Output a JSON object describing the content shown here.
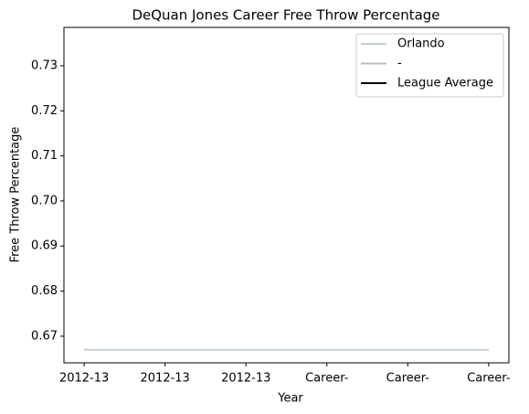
{
  "chart_data": {
    "type": "line",
    "title": "DeQuan Jones Career Free Throw Percentage",
    "xlabel": "Year",
    "ylabel": "Free Throw Percentage",
    "categories": [
      "2012-13",
      "2012-13",
      "2012-13",
      "Career-",
      "Career-",
      "Career-"
    ],
    "series": [
      {
        "name": "Orlando",
        "color": "#c4ced4",
        "values": [
          0.667,
          0.667,
          0.667,
          0.667,
          0.667,
          0.667
        ]
      },
      {
        "name": "-",
        "color": "#bbbbbb",
        "values": [
          null,
          null,
          null,
          null,
          null,
          null
        ]
      },
      {
        "name": "League Average",
        "color": "#000000",
        "values": [
          null,
          null,
          null,
          null,
          null,
          null
        ]
      }
    ],
    "ylim": [
      0.6641,
      0.7385
    ],
    "yticks": [
      {
        "value": 0.67,
        "label": "0.67"
      },
      {
        "value": 0.68,
        "label": "0.68"
      },
      {
        "value": 0.69,
        "label": "0.69"
      },
      {
        "value": 0.7,
        "label": "0.70"
      },
      {
        "value": 0.71,
        "label": "0.71"
      },
      {
        "value": 0.72,
        "label": "0.72"
      },
      {
        "value": 0.73,
        "label": "0.73"
      }
    ],
    "legend": "upper right",
    "grid": false
  }
}
